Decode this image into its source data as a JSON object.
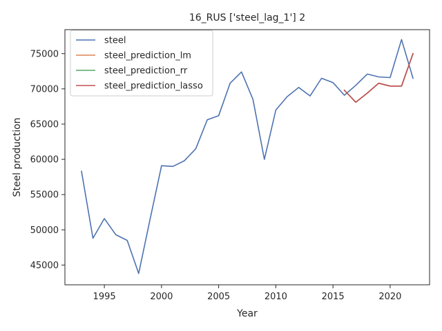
{
  "chart_data": {
    "type": "line",
    "title": "16_RUS ['steel_lag_1'] 2",
    "xlabel": "Year",
    "ylabel": "Steel production",
    "xlim": [
      1991.55,
      2023.45
    ],
    "ylim": [
      42200,
      78400
    ],
    "xticks": [
      1995,
      2000,
      2005,
      2010,
      2015,
      2020
    ],
    "yticks": [
      45000,
      50000,
      55000,
      60000,
      65000,
      70000,
      75000
    ],
    "grid": false,
    "legend_position": "top-left",
    "series": [
      {
        "name": "steel",
        "color": "#4c72b0",
        "x": [
          1993,
          1994,
          1995,
          1996,
          1997,
          1998,
          1999,
          2000,
          2001,
          2002,
          2003,
          2004,
          2005,
          2006,
          2007,
          2008,
          2009,
          2010,
          2011,
          2012,
          2013,
          2014,
          2015,
          2016,
          2017,
          2018,
          2019,
          2020,
          2021,
          2022
        ],
        "y": [
          58300,
          48800,
          51600,
          49300,
          48500,
          43800,
          51500,
          59100,
          59000,
          59800,
          61500,
          65600,
          66200,
          70800,
          72400,
          68500,
          60000,
          67000,
          68900,
          70200,
          69000,
          71500,
          70900,
          69100,
          70500,
          72100,
          71700,
          71600,
          77000,
          71500
        ]
      },
      {
        "name": "steel_prediction_lm",
        "color": "#dd8452",
        "x": [
          2016,
          2017,
          2018,
          2019,
          2020,
          2021,
          2022
        ],
        "y": [
          69800,
          68100,
          69400,
          70800,
          70400,
          70400,
          75000
        ]
      },
      {
        "name": "steel_prediction_rr",
        "color": "#55a868",
        "x": [
          2016,
          2017,
          2018,
          2019,
          2020,
          2021,
          2022
        ],
        "y": [
          69800,
          68100,
          69400,
          70800,
          70400,
          70400,
          75000
        ]
      },
      {
        "name": "steel_prediction_lasso",
        "color": "#c44e52",
        "x": [
          2016,
          2017,
          2018,
          2019,
          2020,
          2021,
          2022
        ],
        "y": [
          69800,
          68100,
          69400,
          70800,
          70400,
          70400,
          75000
        ]
      }
    ]
  }
}
